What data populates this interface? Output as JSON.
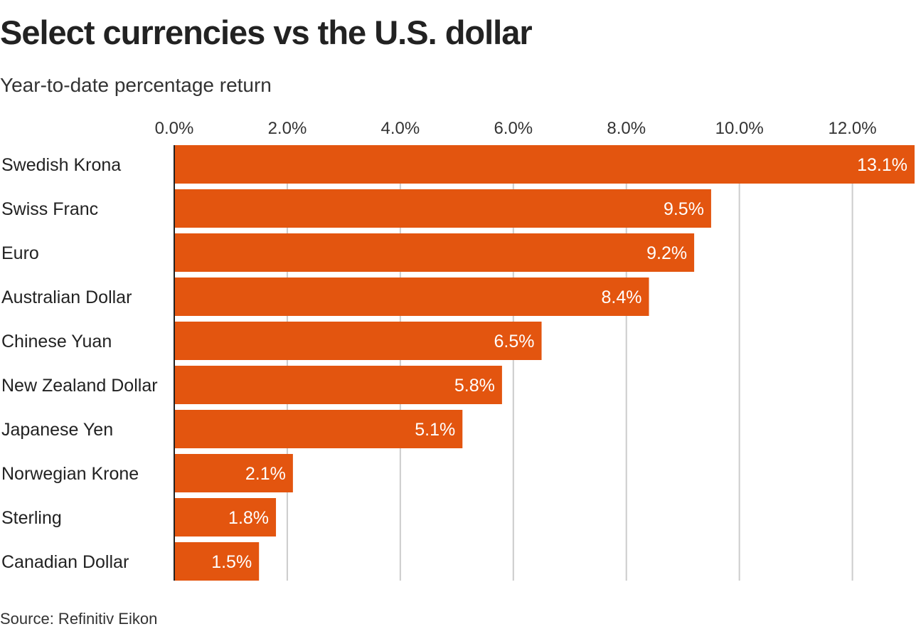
{
  "title": "Select currencies vs the U.S. dollar",
  "subtitle": "Year-to-date percentage return",
  "source": "Source: Refinitiv Eikon",
  "colors": {
    "bar": "#e3550f",
    "grid": "#cccccc",
    "axis": "#222222",
    "label_on_bar": "#ffffff"
  },
  "chart_data": {
    "type": "bar",
    "orientation": "horizontal",
    "title": "Select currencies vs the U.S. dollar",
    "subtitle": "Year-to-date percentage return",
    "xlabel": "",
    "ylabel": "",
    "xlim": [
      0,
      13.1
    ],
    "xticks": [
      0,
      2,
      4,
      6,
      8,
      10,
      12
    ],
    "xtick_labels": [
      "0.0%",
      "2.0%",
      "4.0%",
      "6.0%",
      "8.0%",
      "10.0%",
      "12.0%"
    ],
    "grid": true,
    "legend": "none",
    "categories": [
      "Swedish Krona",
      "Swiss Franc",
      "Euro",
      "Australian Dollar",
      "Chinese Yuan",
      "New Zealand Dollar",
      "Japanese Yen",
      "Norwegian Krone",
      "Sterling",
      "Canadian Dollar"
    ],
    "values": [
      13.1,
      9.5,
      9.2,
      8.4,
      6.5,
      5.8,
      5.1,
      2.1,
      1.8,
      1.5
    ],
    "value_labels": [
      "13.1%",
      "9.5%",
      "9.2%",
      "8.4%",
      "6.5%",
      "5.8%",
      "5.1%",
      "2.1%",
      "1.8%",
      "1.5%"
    ]
  }
}
